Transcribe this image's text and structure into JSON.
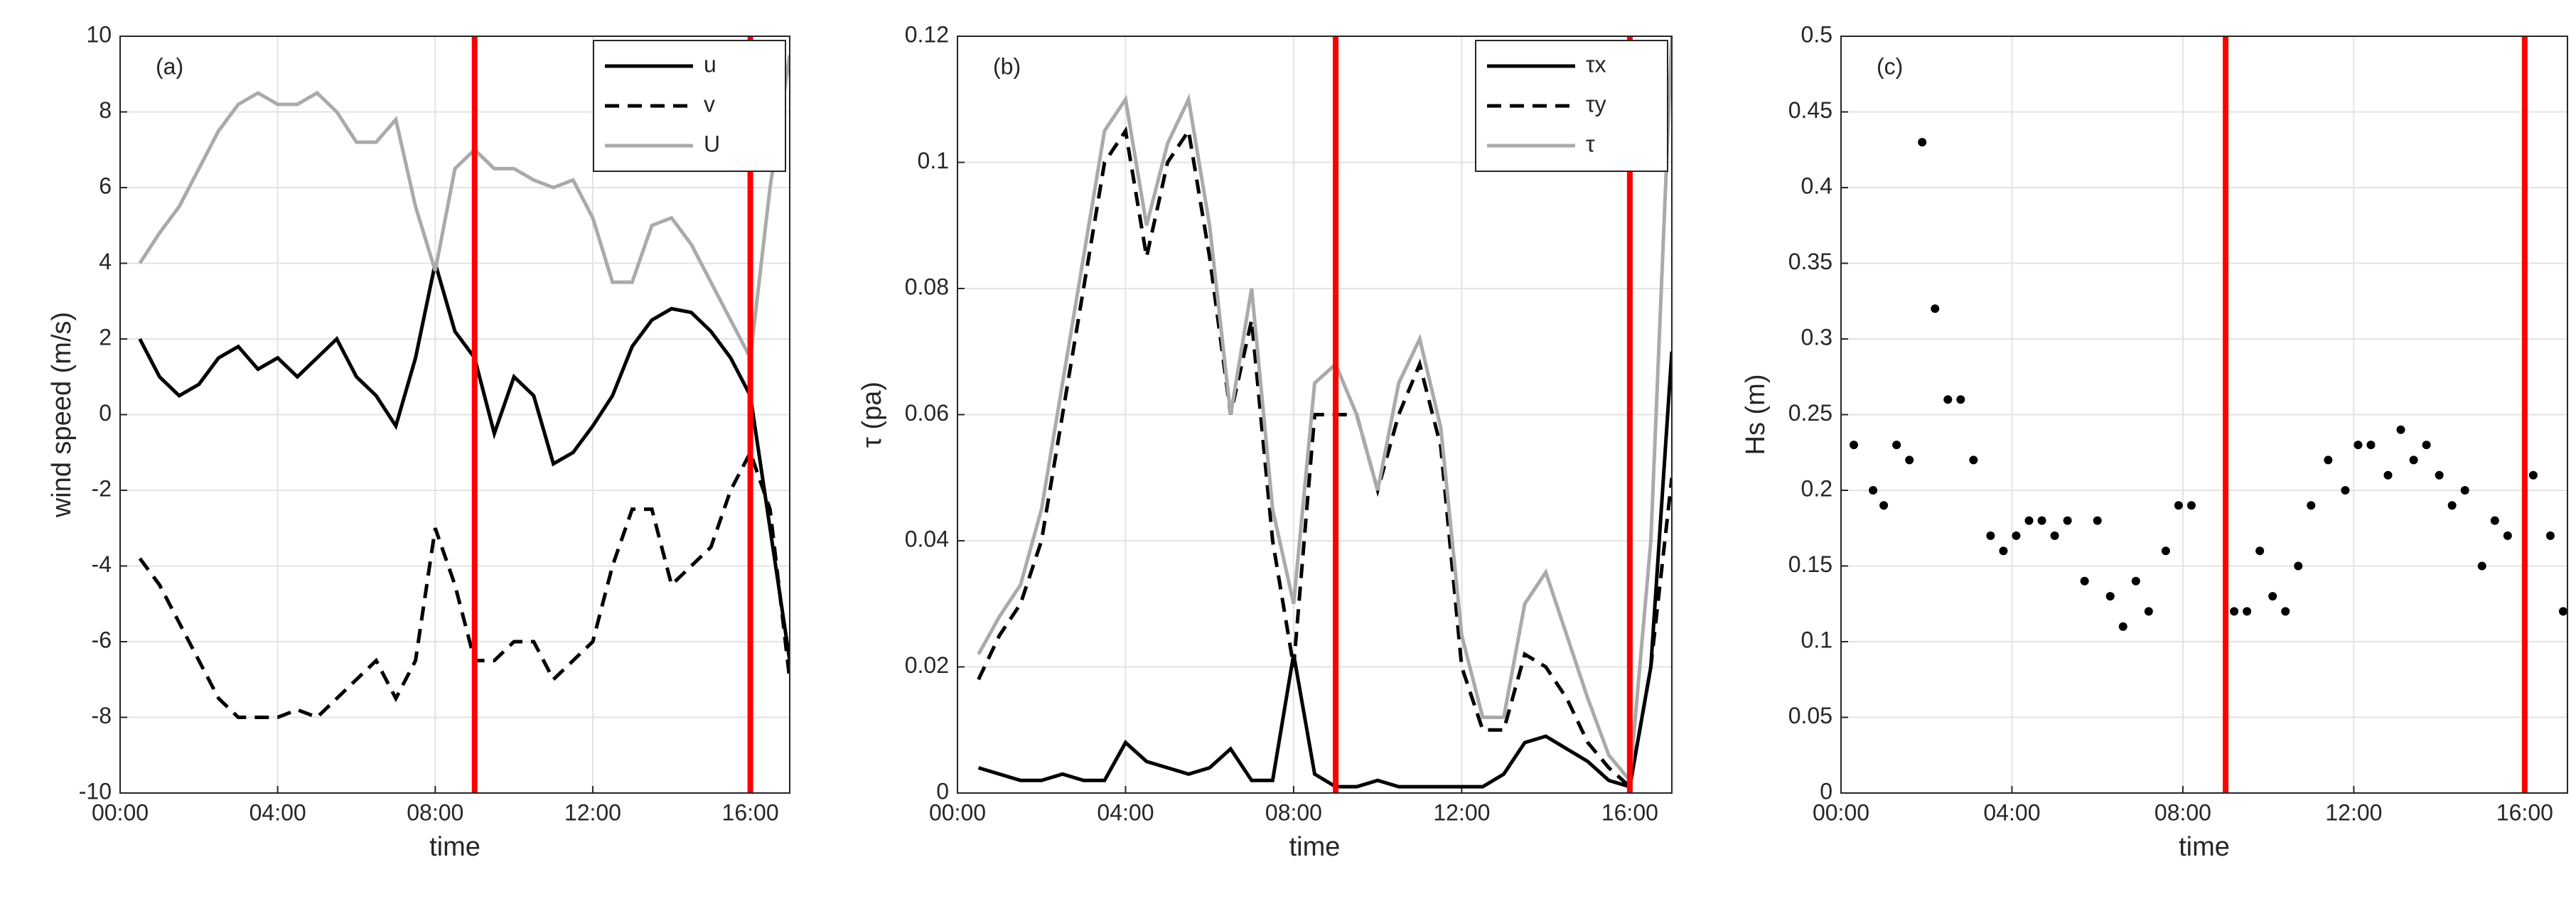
{
  "chart_data": [
    {
      "type": "line",
      "annotation": "(a)",
      "ylabel": "wind speed (m/s)",
      "xlabel": "time",
      "xlim": [
        0,
        17
      ],
      "xticks": [
        {
          "value": 0,
          "label": "00:00"
        },
        {
          "value": 4,
          "label": "04:00"
        },
        {
          "value": 8,
          "label": "08:00"
        },
        {
          "value": 12,
          "label": "12:00"
        },
        {
          "value": 16,
          "label": "16:00"
        }
      ],
      "ylim": [
        -10,
        10
      ],
      "yticks": [
        -10,
        -8,
        -6,
        -4,
        -2,
        0,
        2,
        4,
        6,
        8,
        10
      ],
      "grid": true,
      "legend": "upper right",
      "vlines": [
        9,
        16
      ],
      "vline_color": "#ff0000",
      "x": [
        0.5,
        1,
        1.5,
        2,
        2.5,
        3,
        3.5,
        4,
        4.5,
        5,
        5.5,
        6,
        6.5,
        7,
        7.5,
        8,
        8.5,
        9,
        9.5,
        10,
        10.5,
        11,
        11.5,
        12,
        12.5,
        13,
        13.5,
        14,
        14.5,
        15,
        15.5,
        16,
        16.5,
        17
      ],
      "series": [
        {
          "name": "u",
          "color": "#000000",
          "dash": "solid",
          "values": [
            2,
            1,
            0.5,
            0.8,
            1.5,
            1.8,
            1.2,
            1.5,
            1,
            1.5,
            2,
            1,
            0.5,
            -0.3,
            1.5,
            4,
            2.2,
            1.5,
            -0.5,
            1,
            0.5,
            -1.3,
            -1,
            -0.3,
            0.5,
            1.8,
            2.5,
            2.8,
            2.7,
            2.2,
            1.5,
            0.5,
            -3,
            -6.5
          ]
        },
        {
          "name": "v",
          "color": "#000000",
          "dash": "dashed",
          "values": [
            -3.8,
            -4.5,
            -5.5,
            -6.5,
            -7.5,
            -8,
            -8,
            -8,
            -7.8,
            -8,
            -7.5,
            -7,
            -6.5,
            -7.5,
            -6.5,
            -3,
            -4.5,
            -6.5,
            -6.5,
            -6,
            -6,
            -7,
            -6.5,
            -6,
            -4,
            -2.5,
            -2.5,
            -4.5,
            -4,
            -3.5,
            -2,
            -1,
            -2.5,
            -7
          ]
        },
        {
          "name": "U",
          "color": "#aaaaaa",
          "dash": "solid",
          "values": [
            4,
            4.8,
            5.5,
            6.5,
            7.5,
            8.2,
            8.5,
            8.2,
            8.2,
            8.5,
            8,
            7.2,
            7.2,
            7.8,
            5.5,
            3.8,
            6.5,
            7,
            6.5,
            6.5,
            6.2,
            6,
            6.2,
            5.2,
            3.5,
            3.5,
            5,
            5.2,
            4.5,
            3.5,
            2.5,
            1.5,
            6,
            9.5
          ]
        }
      ]
    },
    {
      "type": "line",
      "annotation": "(b)",
      "ylabel": "τ (pa)",
      "xlabel": "time",
      "xlim": [
        0,
        17
      ],
      "xticks": [
        {
          "value": 0,
          "label": "00:00"
        },
        {
          "value": 4,
          "label": "04:00"
        },
        {
          "value": 8,
          "label": "08:00"
        },
        {
          "value": 12,
          "label": "12:00"
        },
        {
          "value": 16,
          "label": "16:00"
        }
      ],
      "ylim": [
        0,
        0.12
      ],
      "yticks": [
        0,
        0.02,
        0.04,
        0.06,
        0.08,
        0.1,
        0.12
      ],
      "grid": true,
      "legend": "upper right",
      "vlines": [
        9,
        16
      ],
      "vline_color": "#ff0000",
      "x": [
        0.5,
        1,
        1.5,
        2,
        2.5,
        3,
        3.5,
        4,
        4.5,
        5,
        5.5,
        6,
        6.5,
        7,
        7.5,
        8,
        8.5,
        9,
        9.5,
        10,
        10.5,
        11,
        11.5,
        12,
        12.5,
        13,
        13.5,
        14,
        14.5,
        15,
        15.5,
        16,
        16.5,
        17
      ],
      "series": [
        {
          "name": "τx",
          "color": "#000000",
          "dash": "solid",
          "values": [
            0.004,
            0.003,
            0.002,
            0.002,
            0.003,
            0.002,
            0.002,
            0.008,
            0.005,
            0.004,
            0.003,
            0.004,
            0.007,
            0.002,
            0.002,
            0.022,
            0.003,
            0.001,
            0.001,
            0.002,
            0.001,
            0.001,
            0.001,
            0.001,
            0.001,
            0.003,
            0.008,
            0.009,
            0.007,
            0.005,
            0.002,
            0.001,
            0.02,
            0.07
          ]
        },
        {
          "name": "τy",
          "color": "#000000",
          "dash": "dashed",
          "values": [
            0.018,
            0.025,
            0.03,
            0.04,
            0.06,
            0.08,
            0.1,
            0.105,
            0.085,
            0.1,
            0.105,
            0.085,
            0.06,
            0.075,
            0.04,
            0.02,
            0.06,
            0.06,
            0.06,
            0.048,
            0.06,
            0.068,
            0.055,
            0.02,
            0.01,
            0.01,
            0.022,
            0.02,
            0.015,
            0.008,
            0.004,
            0.001,
            0.02,
            0.05
          ]
        },
        {
          "name": "τ",
          "color": "#aaaaaa",
          "dash": "solid",
          "values": [
            0.022,
            0.028,
            0.033,
            0.045,
            0.065,
            0.085,
            0.105,
            0.11,
            0.09,
            0.103,
            0.11,
            0.09,
            0.06,
            0.08,
            0.045,
            0.03,
            0.065,
            0.068,
            0.06,
            0.048,
            0.065,
            0.072,
            0.058,
            0.025,
            0.012,
            0.012,
            0.03,
            0.035,
            0.025,
            0.015,
            0.006,
            0.002,
            0.04,
            0.12
          ]
        }
      ]
    },
    {
      "type": "scatter",
      "annotation": "(c)",
      "ylabel": "Hs (m)",
      "xlabel": "time",
      "xlim": [
        0,
        17
      ],
      "xticks": [
        {
          "value": 0,
          "label": "00:00"
        },
        {
          "value": 4,
          "label": "04:00"
        },
        {
          "value": 8,
          "label": "08:00"
        },
        {
          "value": 12,
          "label": "12:00"
        },
        {
          "value": 16,
          "label": "16:00"
        }
      ],
      "ylim": [
        0,
        0.5
      ],
      "yticks": [
        0,
        0.05,
        0.1,
        0.15,
        0.2,
        0.25,
        0.3,
        0.35,
        0.4,
        0.45,
        0.5
      ],
      "grid": true,
      "vlines": [
        9,
        16
      ],
      "vline_color": "#ff0000",
      "x": [
        0.3,
        0.75,
        1,
        1.3,
        1.6,
        1.9,
        2.2,
        2.5,
        2.8,
        3.1,
        3.5,
        3.8,
        4.1,
        4.4,
        4.7,
        5,
        5.3,
        5.7,
        6,
        6.3,
        6.6,
        6.9,
        7.2,
        7.6,
        7.9,
        8.2,
        9.2,
        9.5,
        9.8,
        10.1,
        10.4,
        10.7,
        11,
        11.4,
        11.8,
        12.1,
        12.4,
        12.8,
        13.1,
        13.4,
        13.7,
        14,
        14.3,
        14.6,
        15,
        15.3,
        15.6,
        16.2,
        16.6,
        16.9
      ],
      "series": [
        {
          "color": "#000000",
          "values": [
            0.23,
            0.2,
            0.19,
            0.23,
            0.22,
            0.43,
            0.32,
            0.26,
            0.26,
            0.22,
            0.17,
            0.16,
            0.17,
            0.18,
            0.18,
            0.17,
            0.18,
            0.14,
            0.18,
            0.13,
            0.11,
            0.14,
            0.12,
            0.16,
            0.19,
            0.19,
            0.12,
            0.12,
            0.16,
            0.13,
            0.12,
            0.15,
            0.19,
            0.22,
            0.2,
            0.23,
            0.23,
            0.21,
            0.24,
            0.22,
            0.23,
            0.21,
            0.19,
            0.2,
            0.15,
            0.18,
            0.17,
            0.21,
            0.17,
            0.12
          ]
        }
      ]
    }
  ]
}
